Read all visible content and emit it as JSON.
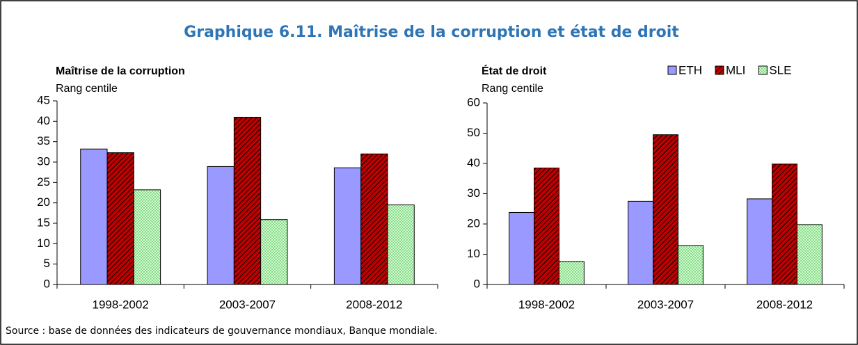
{
  "title": "Graphique 6.11. Maîtrise de la corruption et état de droit",
  "source": "Source : base de données des indicateurs de gouvernance mondiaux, Banque mondiale.",
  "chart_data": [
    {
      "type": "bar",
      "title": "Maîtrise de la corruption",
      "ylabel": "Rang centile",
      "categories": [
        "1998-2002",
        "2003-2007",
        "2008-2012"
      ],
      "series": [
        {
          "color": "#9999ff",
          "pattern": "solid",
          "values": [
            33.2,
            28.9,
            28.6
          ]
        },
        {
          "color": "#c00000",
          "pattern": "hatch",
          "values": [
            32.3,
            41.0,
            32.0
          ]
        },
        {
          "color": "#ccffcc",
          "pattern": "dots",
          "values": [
            23.2,
            15.9,
            19.5
          ]
        }
      ],
      "ylim": [
        0,
        45
      ],
      "yticks": [
        0,
        5,
        10,
        15,
        20,
        25,
        30,
        35,
        40,
        45
      ]
    },
    {
      "type": "bar",
      "title": "État de droit",
      "ylabel": "Rang centile",
      "categories": [
        "1998-2002",
        "2003-2007",
        "2008-2012"
      ],
      "series": [
        {
          "name": "ETH",
          "color": "#9999ff",
          "pattern": "solid",
          "values": [
            23.8,
            27.5,
            28.3
          ]
        },
        {
          "name": "MLI",
          "color": "#c00000",
          "pattern": "hatch",
          "values": [
            38.5,
            49.5,
            39.8
          ]
        },
        {
          "name": "SLE",
          "color": "#ccffcc",
          "pattern": "dots",
          "values": [
            7.6,
            12.9,
            19.8
          ]
        }
      ],
      "ylim": [
        0,
        60
      ],
      "yticks": [
        0,
        10,
        20,
        30,
        40,
        50,
        60
      ],
      "legend": "top-right"
    }
  ]
}
